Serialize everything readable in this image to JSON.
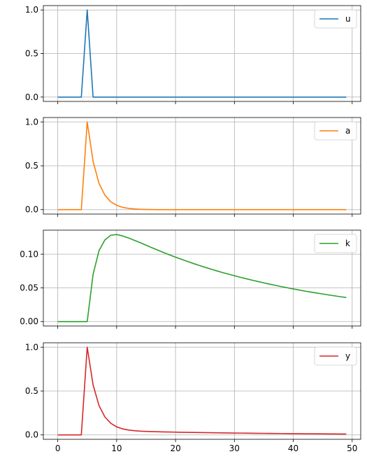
{
  "chart_data": [
    {
      "type": "line",
      "series": [
        {
          "name": "u",
          "color": "#1f77b4",
          "values": [
            0,
            0,
            0,
            0,
            0,
            1,
            0,
            0,
            0,
            0,
            0,
            0,
            0,
            0,
            0,
            0,
            0,
            0,
            0,
            0,
            0,
            0,
            0,
            0,
            0,
            0,
            0,
            0,
            0,
            0,
            0,
            0,
            0,
            0,
            0,
            0,
            0,
            0,
            0,
            0,
            0,
            0,
            0,
            0,
            0,
            0,
            0,
            0,
            0,
            0
          ]
        }
      ],
      "x": [
        0,
        1,
        2,
        3,
        4,
        5,
        6,
        7,
        8,
        9,
        10,
        11,
        12,
        13,
        14,
        15,
        16,
        17,
        18,
        19,
        20,
        21,
        22,
        23,
        24,
        25,
        26,
        27,
        28,
        29,
        30,
        31,
        32,
        33,
        34,
        35,
        36,
        37,
        38,
        39,
        40,
        41,
        42,
        43,
        44,
        45,
        46,
        47,
        48,
        49
      ],
      "xlim": [
        -2.45,
        51.45
      ],
      "ylim": [
        -0.05,
        1.05
      ],
      "xticks": [
        0,
        10,
        20,
        30,
        40,
        50
      ],
      "yticks": [
        0.0,
        0.5,
        1.0
      ],
      "ytick_labels": [
        "0.0",
        "0.5",
        "1.0"
      ],
      "grid": true,
      "legend": "upper right"
    },
    {
      "type": "line",
      "series": [
        {
          "name": "a",
          "color": "#ff7f0e",
          "values": [
            0,
            0,
            0,
            0,
            0,
            1,
            0.55,
            0.3,
            0.165,
            0.09,
            0.05,
            0.027,
            0.015,
            0.008,
            0.0045,
            0.0025,
            0.0014,
            0,
            0,
            0,
            0,
            0,
            0,
            0,
            0,
            0,
            0,
            0,
            0,
            0,
            0,
            0,
            0,
            0,
            0,
            0,
            0,
            0,
            0,
            0,
            0,
            0,
            0,
            0,
            0,
            0,
            0,
            0,
            0,
            0
          ]
        }
      ],
      "x": [
        0,
        1,
        2,
        3,
        4,
        5,
        6,
        7,
        8,
        9,
        10,
        11,
        12,
        13,
        14,
        15,
        16,
        17,
        18,
        19,
        20,
        21,
        22,
        23,
        24,
        25,
        26,
        27,
        28,
        29,
        30,
        31,
        32,
        33,
        34,
        35,
        36,
        37,
        38,
        39,
        40,
        41,
        42,
        43,
        44,
        45,
        46,
        47,
        48,
        49
      ],
      "xlim": [
        -2.45,
        51.45
      ],
      "ylim": [
        -0.05,
        1.05
      ],
      "xticks": [
        0,
        10,
        20,
        30,
        40,
        50
      ],
      "yticks": [
        0.0,
        0.5,
        1.0
      ],
      "ytick_labels": [
        "0.0",
        "0.5",
        "1.0"
      ],
      "grid": true,
      "legend": "upper right"
    },
    {
      "type": "line",
      "series": [
        {
          "name": "k",
          "color": "#2ca02c",
          "values": [
            0,
            0,
            0,
            0,
            0,
            0,
            0.07,
            0.105,
            0.121,
            0.128,
            0.129,
            0.127,
            0.124,
            0.1205,
            0.117,
            0.1132,
            0.1095,
            0.1058,
            0.1022,
            0.0988,
            0.0955,
            0.0923,
            0.0892,
            0.0862,
            0.0833,
            0.0805,
            0.0778,
            0.0752,
            0.0727,
            0.0703,
            0.068,
            0.0657,
            0.0635,
            0.0614,
            0.0594,
            0.0574,
            0.0555,
            0.0536,
            0.0518,
            0.0501,
            0.0484,
            0.0468,
            0.0452,
            0.0437,
            0.0423,
            0.0409,
            0.0395,
            0.0382,
            0.0369,
            0.0357
          ]
        }
      ],
      "x": [
        0,
        1,
        2,
        3,
        4,
        5,
        6,
        7,
        8,
        9,
        10,
        11,
        12,
        13,
        14,
        15,
        16,
        17,
        18,
        19,
        20,
        21,
        22,
        23,
        24,
        25,
        26,
        27,
        28,
        29,
        30,
        31,
        32,
        33,
        34,
        35,
        36,
        37,
        38,
        39,
        40,
        41,
        42,
        43,
        44,
        45,
        46,
        47,
        48,
        49
      ],
      "xlim": [
        -2.45,
        51.45
      ],
      "ylim": [
        -0.0065,
        0.1355
      ],
      "xticks": [
        0,
        10,
        20,
        30,
        40,
        50
      ],
      "yticks": [
        0.0,
        0.05,
        0.1
      ],
      "ytick_labels": [
        "0.00",
        "0.05",
        "0.10"
      ],
      "grid": true,
      "legend": "upper right"
    },
    {
      "type": "line",
      "series": [
        {
          "name": "y",
          "color": "#d62728",
          "values": [
            0,
            0,
            0,
            0,
            0,
            1,
            0.57,
            0.335,
            0.205,
            0.133,
            0.092,
            0.069,
            0.056,
            0.048,
            0.043,
            0.04,
            0.038,
            0.036,
            0.0345,
            0.033,
            0.0317,
            0.0305,
            0.0293,
            0.0282,
            0.0271,
            0.0261,
            0.0251,
            0.0242,
            0.0233,
            0.0224,
            0.0216,
            0.0208,
            0.02,
            0.0192,
            0.0185,
            0.0178,
            0.0171,
            0.0164,
            0.0158,
            0.0152,
            0.0146,
            0.014,
            0.0135,
            0.013,
            0.0125,
            0.012,
            0.0115,
            0.011,
            0.0106,
            0.0102
          ]
        }
      ],
      "x": [
        0,
        1,
        2,
        3,
        4,
        5,
        6,
        7,
        8,
        9,
        10,
        11,
        12,
        13,
        14,
        15,
        16,
        17,
        18,
        19,
        20,
        21,
        22,
        23,
        24,
        25,
        26,
        27,
        28,
        29,
        30,
        31,
        32,
        33,
        34,
        35,
        36,
        37,
        38,
        39,
        40,
        41,
        42,
        43,
        44,
        45,
        46,
        47,
        48,
        49
      ],
      "xlim": [
        -2.45,
        51.45
      ],
      "ylim": [
        -0.05,
        1.05
      ],
      "xticks": [
        0,
        10,
        20,
        30,
        40,
        50
      ],
      "yticks": [
        0.0,
        0.5,
        1.0
      ],
      "ytick_labels": [
        "0.0",
        "0.5",
        "1.0"
      ],
      "xtick_labels": [
        "0",
        "10",
        "20",
        "30",
        "40",
        "50"
      ],
      "grid": true,
      "legend": "upper right"
    }
  ]
}
